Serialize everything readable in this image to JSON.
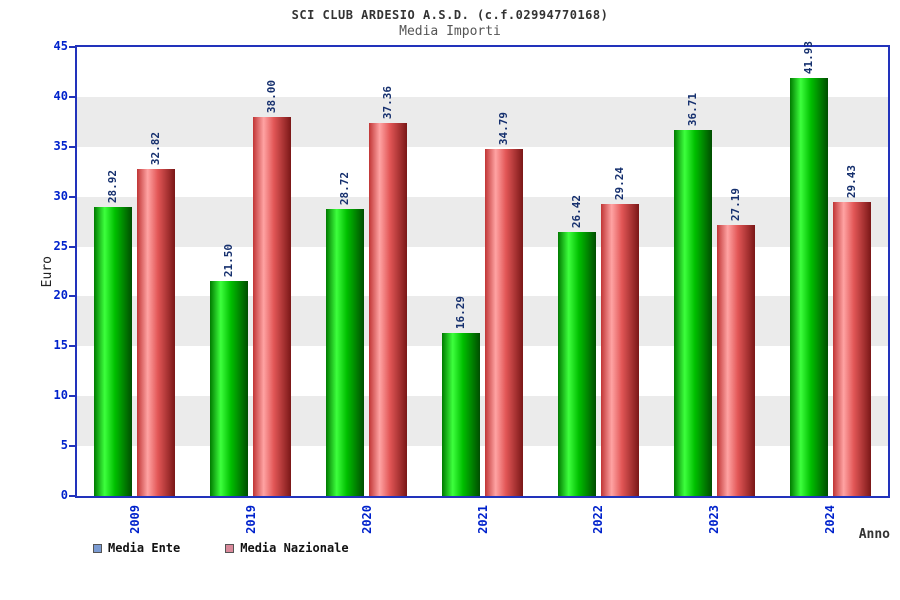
{
  "chart_data": {
    "type": "bar",
    "title": "SCI CLUB ARDESIO A.S.D. (c.f.02994770168)",
    "subtitle": "Media Importi",
    "xlabel": "Anno",
    "ylabel": "Euro",
    "ylim": [
      0,
      45
    ],
    "ytick_step": 5,
    "categories": [
      "2009",
      "2019",
      "2020",
      "2021",
      "2022",
      "2023",
      "2024"
    ],
    "series": [
      {
        "name": "Media Ente",
        "values": [
          28.92,
          21.5,
          28.72,
          16.29,
          26.42,
          36.71,
          41.93
        ]
      },
      {
        "name": "Media Nazionale",
        "values": [
          32.82,
          38.0,
          37.36,
          34.79,
          29.24,
          27.19,
          29.43
        ]
      }
    ],
    "legend": {
      "position": "bottom-left",
      "swatches": [
        "#7b9bd2",
        "#d9899a"
      ]
    },
    "colors": {
      "axis_tick_labels": "#0022cc",
      "value_labels": "#16306e",
      "plot_border": "#2233bb",
      "bands": [
        "#ffffff",
        "#ebebeb"
      ],
      "bar_gradients": [
        [
          "#007a00",
          "#3dff3d",
          "#00bf00",
          "#004d00"
        ],
        [
          "#c03535",
          "#ffa3a3",
          "#e25656",
          "#7a1717"
        ]
      ]
    },
    "grid": "banded"
  }
}
